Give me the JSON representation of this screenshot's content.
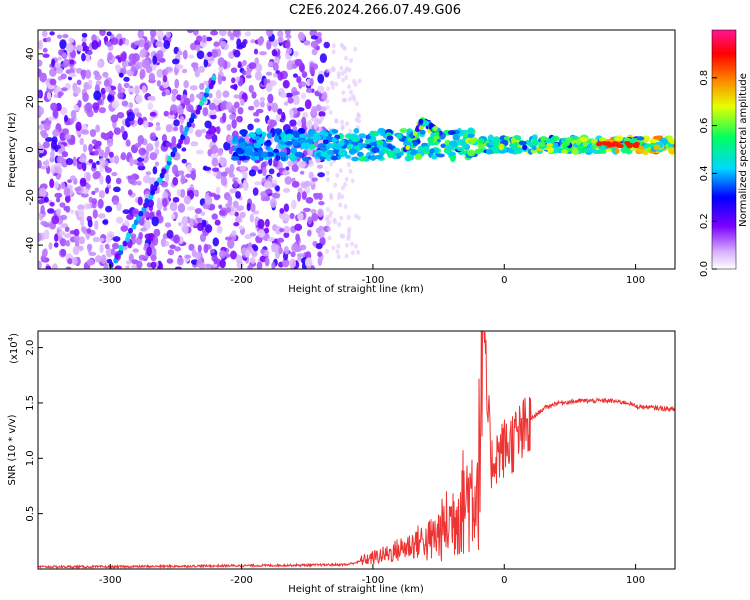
{
  "title": "C2E6.2024.266.07.49.G06",
  "chart_data": [
    {
      "type": "heatmap",
      "xlabel": "Height of straight line (km)",
      "ylabel": "Frequency (Hz)",
      "xlim": [
        -355,
        130
      ],
      "ylim": [
        -50,
        50
      ],
      "xticks": [
        -300,
        -200,
        -100,
        0,
        100
      ],
      "yticks": [
        -40,
        -20,
        0,
        20,
        40
      ],
      "colorbar": {
        "label": "Normalized spectral amplitude",
        "range": [
          0,
          1
        ],
        "ticks": [
          "0.0",
          "0.2",
          "0.4",
          "0.6",
          "0.8"
        ],
        "colors": [
          "#ffffff",
          "#cc99ff",
          "#7a00ff",
          "#0000ff",
          "#00d7ff",
          "#00ff60",
          "#e6ff00",
          "#ff7a00",
          "#ff0000",
          "#ff1493"
        ]
      },
      "features": [
        {
          "name": "noise",
          "x_range": [
            -355,
            -135
          ],
          "y_range": [
            -50,
            50
          ],
          "amplitude": 0.25
        },
        {
          "name": "diagonal_streak",
          "points": [
            [
              -300,
              -50
            ],
            [
              -220,
              30
            ]
          ],
          "amplitude": 0.3
        },
        {
          "name": "signal_band",
          "x_range": [
            -205,
            130
          ],
          "center_freq": 2,
          "amplitude_start": 0.35,
          "amplitude_end": 0.85
        },
        {
          "name": "wing",
          "points": [
            [
              -75,
              0
            ],
            [
              -62,
              12
            ],
            [
              -50,
              6
            ]
          ],
          "amplitude": 0.5
        }
      ]
    },
    {
      "type": "line",
      "xlabel": "Height of straight line (km)",
      "ylabel": "SNR (10 * v/v)",
      "y_multiplier": "(x10",
      "y_multiplier_exp": "4",
      "y_multiplier_close": ")",
      "xlim": [
        -355,
        130
      ],
      "ylim": [
        0,
        2.15
      ],
      "xticks": [
        -300,
        -200,
        -100,
        0,
        100
      ],
      "yticks": [
        0.5,
        1.0,
        1.5,
        2.0
      ],
      "ytick_labels": [
        "0.5",
        "1.0",
        "1.5",
        "2.0"
      ],
      "color": "#ee3333",
      "x": [
        -355,
        -300,
        -250,
        -200,
        -150,
        -120,
        -105,
        -90,
        -75,
        -60,
        -50,
        -40,
        -30,
        -20,
        -16,
        -10,
        -5,
        0,
        10,
        20,
        30,
        40,
        60,
        80,
        95,
        100,
        110,
        120,
        130
      ],
      "y": [
        0.02,
        0.02,
        0.025,
        0.03,
        0.035,
        0.04,
        0.08,
        0.12,
        0.18,
        0.25,
        0.35,
        0.5,
        0.7,
        0.85,
        2.15,
        1.0,
        1.1,
        1.15,
        1.25,
        1.35,
        1.45,
        1.5,
        1.52,
        1.52,
        1.5,
        1.47,
        1.46,
        1.45,
        1.44
      ]
    }
  ]
}
